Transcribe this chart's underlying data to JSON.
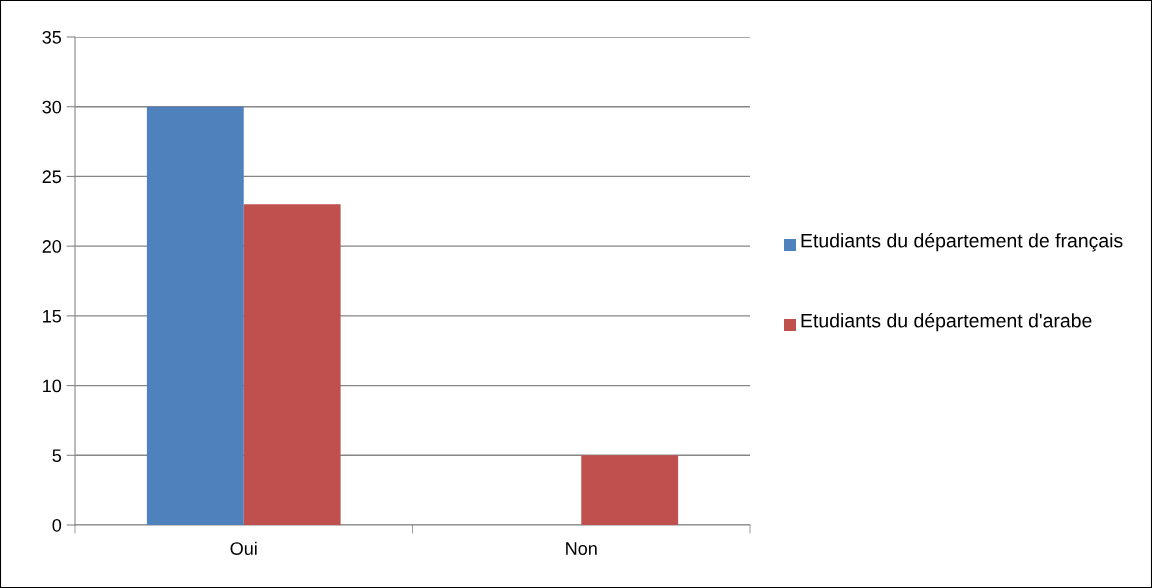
{
  "chart_data": {
    "type": "bar",
    "categories": [
      "Oui",
      "Non"
    ],
    "series": [
      {
        "name": "Etudiants du département de français",
        "color": "#4f81bd",
        "values": [
          30,
          0
        ]
      },
      {
        "name": "Etudiants du département d'arabe",
        "color": "#c0504d",
        "values": [
          23,
          5
        ]
      }
    ],
    "ylim": [
      0,
      35
    ],
    "yticks": [
      0,
      5,
      10,
      15,
      20,
      25,
      30,
      35
    ],
    "grid": "y",
    "legend": "right"
  }
}
